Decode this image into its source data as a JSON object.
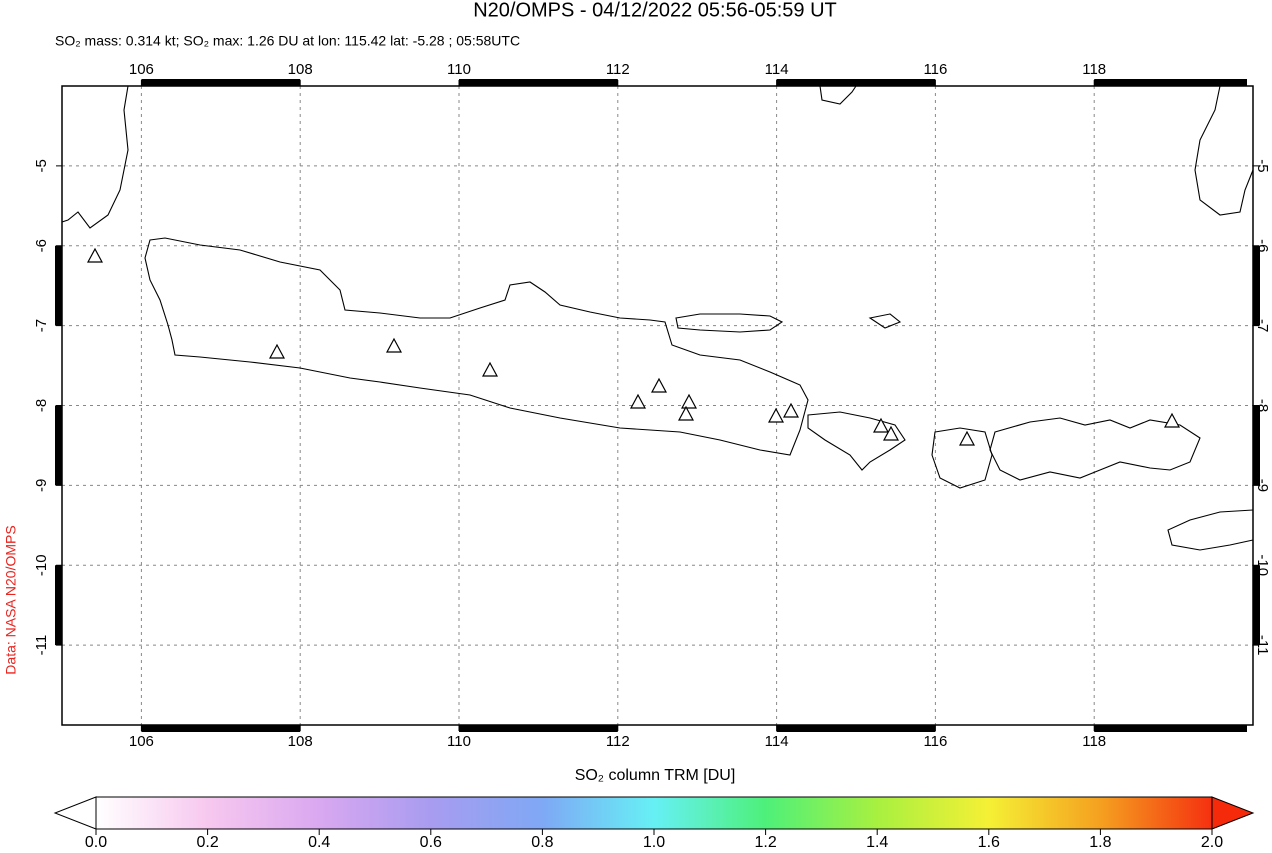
{
  "header": {
    "title": "N20/OMPS - 04/12/2022 05:56-05:59 UT",
    "subtitle": "SO₂ mass: 0.314 kt; SO₂ max: 1.26 DU at lon: 115.42 lat: -5.28 ; 05:58UTC",
    "credit": "Data: NASA N20/OMPS"
  },
  "map": {
    "type": "map",
    "xlim": [
      105,
      120
    ],
    "ylim": [
      -12,
      -4
    ],
    "xticks": [
      106,
      108,
      110,
      112,
      114,
      116,
      118
    ],
    "yticks": [
      -5,
      -6,
      -7,
      -8,
      -9,
      -10,
      -11
    ],
    "grid": true
  },
  "colorbar": {
    "label": "SO₂ column TRM [DU]",
    "lim": [
      0,
      2
    ],
    "ticks": [
      {
        "value": 0,
        "label": "0.0"
      },
      {
        "value": 0.2,
        "label": "0.2"
      },
      {
        "value": 0.4,
        "label": "0.4"
      },
      {
        "value": 0.6,
        "label": "0.6"
      },
      {
        "value": 0.8,
        "label": "0.8"
      },
      {
        "value": 1,
        "label": "1.0"
      },
      {
        "value": 1.2,
        "label": "1.2"
      },
      {
        "value": 1.4,
        "label": "1.4"
      },
      {
        "value": 1.6,
        "label": "1.6"
      },
      {
        "value": 1.8,
        "label": "1.8"
      },
      {
        "value": 2,
        "label": "2.0"
      }
    ],
    "colors": [
      "#ffffff",
      "#f7c8ef",
      "#d9a8f0",
      "#a89cf0",
      "#7fa8f5",
      "#66f0f5",
      "#4ef07a",
      "#a8f040",
      "#f5f035",
      "#f5a020",
      "#f53010"
    ],
    "extend_low_color": "#ffffff",
    "extend_high_color": "#f52a0a"
  }
}
